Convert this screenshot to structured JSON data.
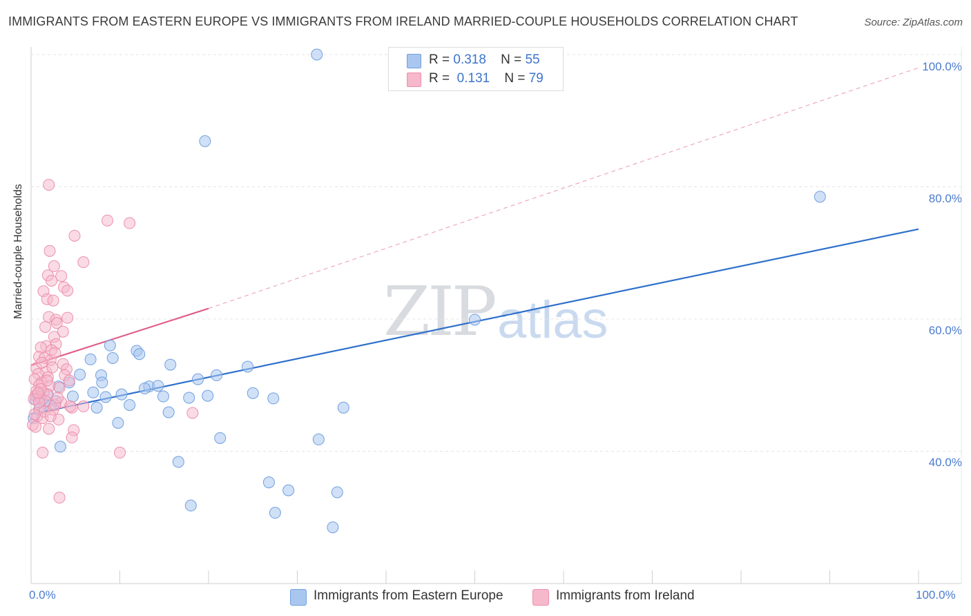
{
  "title": "IMMIGRANTS FROM EASTERN EUROPE VS IMMIGRANTS FROM IRELAND MARRIED-COUPLE HOUSEHOLDS CORRELATION CHART",
  "source": "Source: ZipAtlas.com",
  "watermark": {
    "zip": "ZIP",
    "atlas": "atlas"
  },
  "legend": {
    "rows": [
      {
        "r_label": "R =",
        "r_value": "0.318",
        "n_label": "N =",
        "n_value": "55"
      },
      {
        "r_label": "R =",
        "r_value": "0.131",
        "n_label": "N =",
        "n_value": "79"
      }
    ],
    "bottom": [
      "Immigrants from Eastern Europe",
      "Immigrants from Ireland"
    ]
  },
  "colors": {
    "series_a_fill": "#a9c7ee",
    "series_a_stroke": "#6f9fe0",
    "series_a_line": "#2e6fcb",
    "series_b_fill": "#f6b8cb",
    "series_b_stroke": "#ec8fab",
    "series_b_line": "#e05f8a",
    "tick_text": "#4a7bd0",
    "grid": "#e4e4e4"
  },
  "chart_data": {
    "type": "scatter",
    "title": "IMMIGRANTS FROM EASTERN EUROPE VS IMMIGRANTS FROM IRELAND MARRIED-COUPLE HOUSEHOLDS CORRELATION CHART",
    "xlabel": "",
    "ylabel": "Married-couple Households",
    "xlim": [
      0,
      100
    ],
    "ylim": [
      20,
      102
    ],
    "x_tick_labels": [
      "0.0%",
      "100.0%"
    ],
    "y_ticks": [
      40,
      60,
      80,
      100
    ],
    "y_tick_labels": [
      "40.0%",
      "60.0%",
      "80.0%",
      "100.0%"
    ],
    "grid": true,
    "series": [
      {
        "name": "Immigrants from Eastern Europe",
        "r": 0.318,
        "n": 55,
        "trend": {
          "x": [
            0,
            100
          ],
          "y": [
            45.6,
            73.6
          ],
          "style": "solid"
        },
        "points": [
          [
            32.2,
            100.0
          ],
          [
            47.0,
            100.0
          ],
          [
            19.6,
            86.9
          ],
          [
            88.9,
            78.5
          ],
          [
            50.0,
            59.9
          ],
          [
            8.9,
            56.0
          ],
          [
            11.9,
            55.2
          ],
          [
            12.2,
            54.7
          ],
          [
            6.7,
            53.9
          ],
          [
            9.2,
            54.1
          ],
          [
            15.7,
            53.1
          ],
          [
            24.4,
            52.8
          ],
          [
            7.9,
            51.5
          ],
          [
            20.9,
            51.5
          ],
          [
            18.8,
            50.9
          ],
          [
            4.3,
            50.4
          ],
          [
            8.0,
            50.4
          ],
          [
            3.1,
            49.8
          ],
          [
            13.3,
            49.8
          ],
          [
            14.3,
            49.9
          ],
          [
            7.0,
            48.9
          ],
          [
            25.0,
            48.8
          ],
          [
            12.8,
            49.5
          ],
          [
            10.2,
            48.6
          ],
          [
            4.7,
            48.3
          ],
          [
            8.4,
            48.2
          ],
          [
            17.8,
            48.1
          ],
          [
            14.9,
            48.3
          ],
          [
            27.3,
            48.0
          ],
          [
            1.2,
            47.7
          ],
          [
            0.5,
            47.8
          ],
          [
            1.4,
            47.3
          ],
          [
            11.1,
            47.0
          ],
          [
            2.2,
            46.9
          ],
          [
            7.4,
            46.6
          ],
          [
            35.2,
            46.6
          ],
          [
            0.9,
            46.3
          ],
          [
            15.5,
            45.9
          ],
          [
            0.3,
            45.0
          ],
          [
            9.8,
            44.3
          ],
          [
            21.3,
            42.0
          ],
          [
            32.4,
            41.8
          ],
          [
            3.3,
            40.7
          ],
          [
            16.6,
            38.4
          ],
          [
            26.8,
            35.3
          ],
          [
            29.0,
            34.1
          ],
          [
            34.5,
            33.8
          ],
          [
            18.0,
            31.8
          ],
          [
            27.5,
            30.7
          ],
          [
            34.0,
            28.5
          ],
          [
            1.8,
            48.6
          ],
          [
            2.8,
            47.6
          ],
          [
            5.5,
            51.6
          ],
          [
            0.7,
            48.5
          ],
          [
            19.9,
            48.4
          ]
        ]
      },
      {
        "name": "Immigrants from Ireland",
        "r": 0.131,
        "n": 79,
        "trend": {
          "x": [
            0,
            20
          ],
          "y": [
            53.0,
            61.6
          ],
          "style": "solid"
        },
        "trend_extended": {
          "x": [
            20,
            100
          ],
          "y": [
            61.6,
            98.0
          ],
          "style": "dashed"
        },
        "points": [
          [
            2.0,
            80.3
          ],
          [
            8.6,
            74.9
          ],
          [
            11.1,
            74.5
          ],
          [
            4.9,
            72.6
          ],
          [
            2.1,
            70.3
          ],
          [
            5.9,
            68.6
          ],
          [
            2.6,
            68.0
          ],
          [
            1.9,
            66.6
          ],
          [
            2.3,
            65.8
          ],
          [
            3.4,
            66.5
          ],
          [
            3.7,
            64.8
          ],
          [
            1.4,
            64.2
          ],
          [
            4.1,
            64.3
          ],
          [
            1.8,
            63.0
          ],
          [
            2.5,
            62.8
          ],
          [
            2.0,
            60.3
          ],
          [
            2.8,
            59.9
          ],
          [
            4.1,
            60.2
          ],
          [
            2.9,
            59.4
          ],
          [
            1.6,
            58.8
          ],
          [
            3.6,
            58.1
          ],
          [
            2.6,
            57.3
          ],
          [
            2.8,
            56.2
          ],
          [
            1.7,
            55.9
          ],
          [
            1.1,
            55.7
          ],
          [
            2.3,
            55.3
          ],
          [
            0.9,
            54.3
          ],
          [
            1.5,
            54.1
          ],
          [
            2.2,
            53.8
          ],
          [
            3.6,
            53.2
          ],
          [
            0.6,
            52.6
          ],
          [
            4.0,
            52.4
          ],
          [
            1.7,
            52.0
          ],
          [
            0.8,
            51.7
          ],
          [
            1.9,
            51.2
          ],
          [
            3.8,
            51.5
          ],
          [
            0.4,
            50.9
          ],
          [
            1.2,
            50.4
          ],
          [
            4.3,
            50.7
          ],
          [
            0.9,
            50.0
          ],
          [
            2.1,
            49.9
          ],
          [
            3.2,
            49.6
          ],
          [
            0.6,
            49.1
          ],
          [
            1.4,
            48.9
          ],
          [
            1.9,
            48.6
          ],
          [
            0.5,
            48.4
          ],
          [
            1.0,
            48.2
          ],
          [
            0.3,
            47.9
          ],
          [
            1.6,
            47.6
          ],
          [
            3.4,
            47.4
          ],
          [
            5.9,
            46.8
          ],
          [
            1.0,
            46.5
          ],
          [
            2.5,
            46.3
          ],
          [
            4.6,
            46.6
          ],
          [
            18.2,
            45.8
          ],
          [
            0.7,
            45.3
          ],
          [
            1.3,
            45.0
          ],
          [
            3.1,
            44.8
          ],
          [
            0.2,
            44.0
          ],
          [
            0.5,
            43.7
          ],
          [
            2.0,
            43.4
          ],
          [
            4.8,
            43.2
          ],
          [
            4.6,
            42.1
          ],
          [
            1.3,
            39.8
          ],
          [
            10.0,
            39.8
          ],
          [
            3.2,
            33.0
          ],
          [
            2.7,
            47.0
          ],
          [
            1.8,
            50.7
          ],
          [
            0.9,
            47.4
          ],
          [
            2.4,
            52.7
          ],
          [
            1.5,
            46.0
          ],
          [
            0.4,
            45.6
          ],
          [
            3.0,
            48.1
          ],
          [
            1.1,
            49.4
          ],
          [
            2.7,
            54.9
          ],
          [
            1.2,
            53.4
          ],
          [
            0.8,
            48.8
          ],
          [
            2.2,
            45.3
          ],
          [
            4.4,
            46.8
          ]
        ]
      }
    ]
  }
}
